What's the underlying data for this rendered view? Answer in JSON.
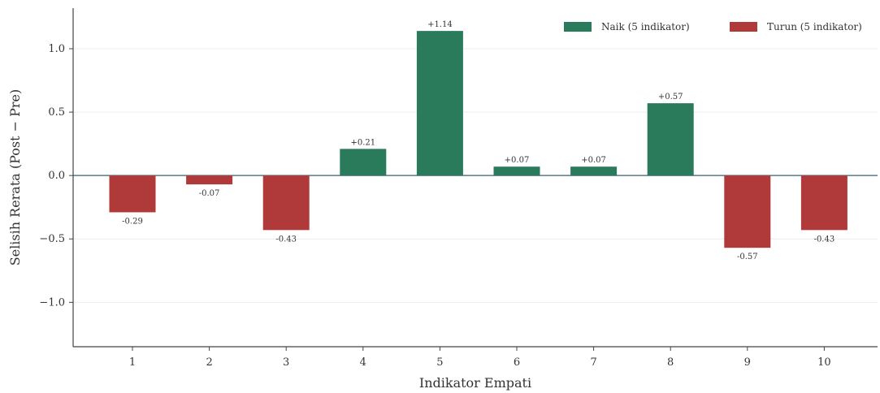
{
  "chart_data": {
    "type": "bar",
    "title": "",
    "xlabel": "Indikator Empati",
    "ylabel": "Selisih Rerata (Post − Pre)",
    "categories": [
      "1",
      "2",
      "3",
      "4",
      "5",
      "6",
      "7",
      "8",
      "9",
      "10"
    ],
    "values": [
      -0.29,
      -0.07,
      -0.43,
      0.21,
      1.14,
      0.07,
      0.07,
      0.57,
      -0.57,
      -0.43
    ],
    "data_labels": [
      "-0.29",
      "-0.07",
      "-0.43",
      "+0.21",
      "+1.14",
      "+0.07",
      "+0.07",
      "+0.57",
      "-0.57",
      "-0.43"
    ],
    "ylim": [
      -1.35,
      1.32
    ],
    "yticks": [
      -1.0,
      -0.5,
      0.0,
      0.5,
      1.0
    ],
    "ytick_labels": [
      "−1.0",
      "−0.5",
      "0.0",
      "0.5",
      "1.0"
    ],
    "grid": "horizontal",
    "legend": {
      "position": "top-right",
      "items": [
        {
          "label": "Naik (5 indikator)",
          "color": "#2a7a5c"
        },
        {
          "label": "Turun (5 indikator)",
          "color": "#b03a3a"
        }
      ]
    },
    "colors": {
      "positive": "#2a7a5c",
      "negative": "#b03a3a",
      "zero_line": "#5a7a8c",
      "axis": "#444444",
      "grid": "#eeeeee"
    }
  }
}
